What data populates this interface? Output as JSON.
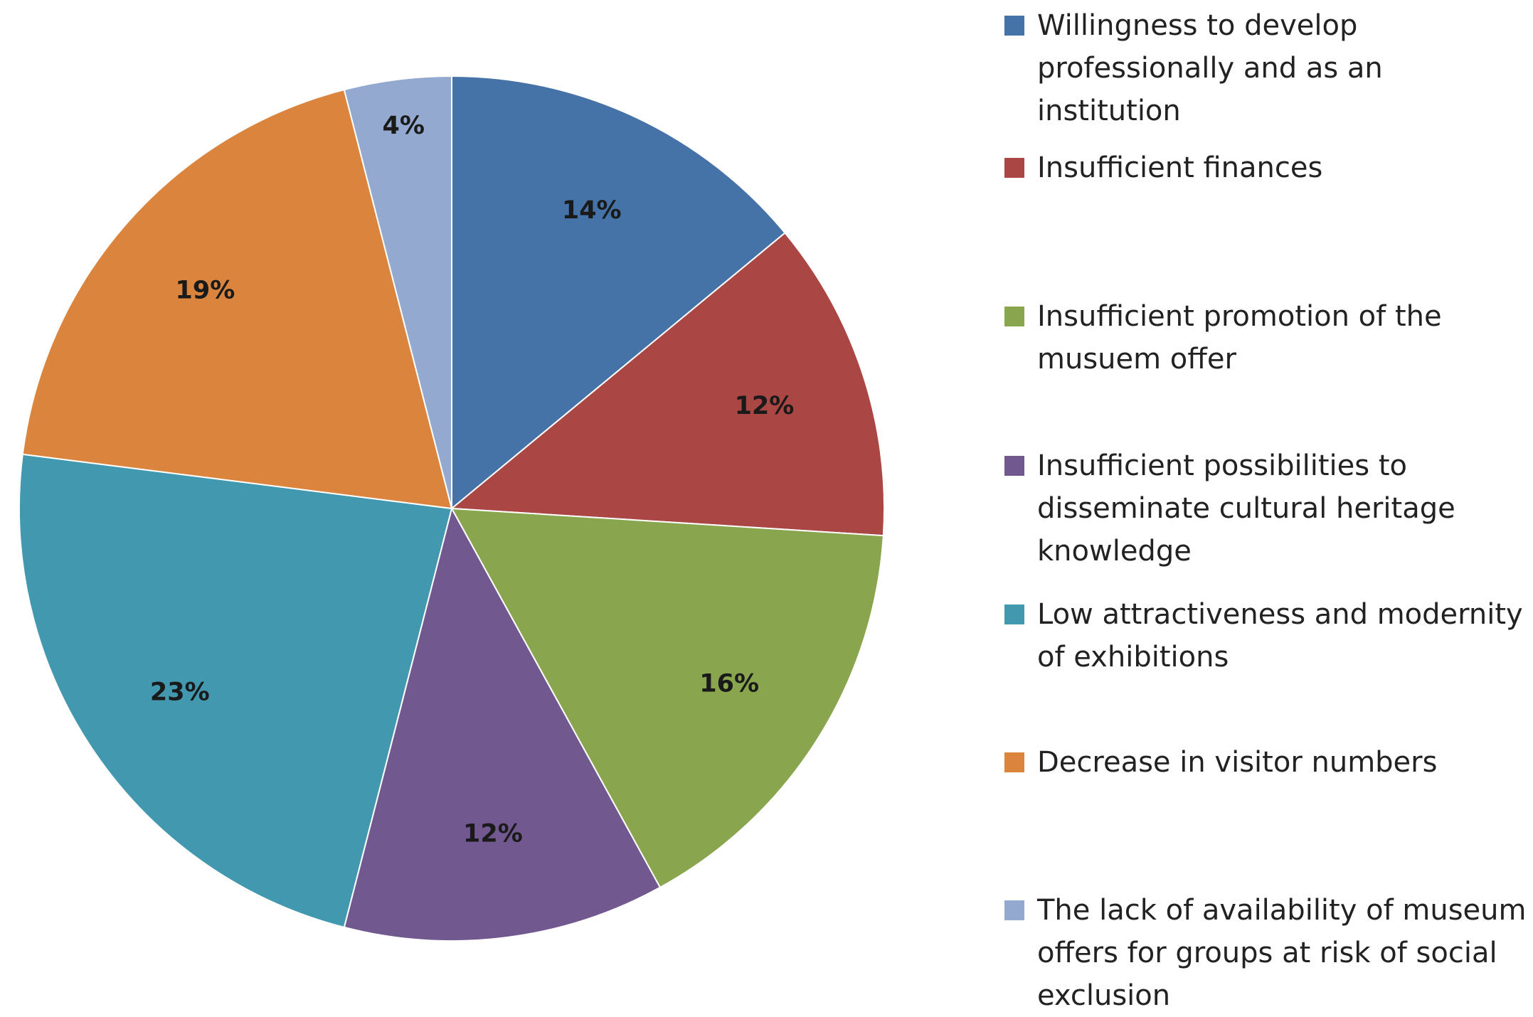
{
  "chart_data": {
    "type": "pie",
    "categories": [
      "Willingness to develop professionally and as an institution",
      "Insufficient finances",
      "Insufficient promotion of the musuem offer",
      "Insufficient possibilities to disseminate cultural heritage knowledge",
      "Low attractiveness and modernity of exhibitions",
      "Decrease in visitor numbers",
      "The lack of availability of museum offers for groups at risk of social exclusion"
    ],
    "values": [
      14,
      12,
      16,
      12,
      23,
      19,
      4
    ],
    "data_labels": [
      "14%",
      "12%",
      "16%",
      "12%",
      "23%",
      "19%",
      "4%"
    ],
    "colors": [
      "#4572A7",
      "#AA4643",
      "#89A54E",
      "#71588F",
      "#4198AF",
      "#DB843D",
      "#93A9CF"
    ],
    "start_angle_deg": 0,
    "direction": "clockwise",
    "legend_position": "right"
  }
}
